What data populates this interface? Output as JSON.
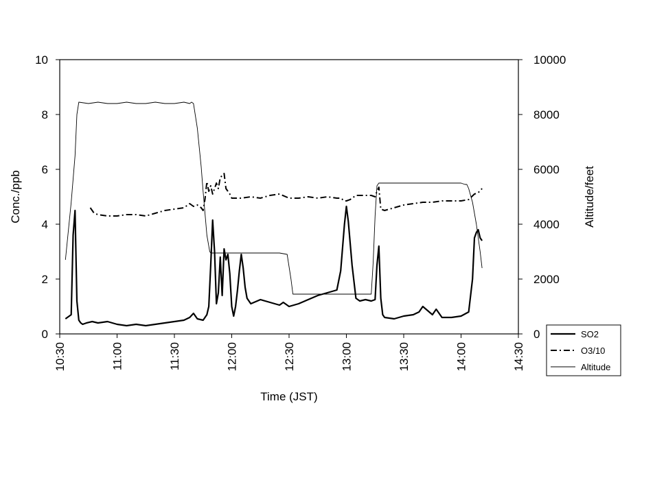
{
  "chart_data": {
    "type": "line",
    "title": "",
    "xlabel": "Time (JST)",
    "ylabel": "Conc./ppb",
    "y2label": "Altitude/feet",
    "xlim": [
      "10:30",
      "14:30"
    ],
    "ylim": [
      0,
      10
    ],
    "y2lim": [
      0,
      10000
    ],
    "x_ticks": [
      "10:30",
      "11:00",
      "11:30",
      "12:00",
      "12:30",
      "13:00",
      "13:30",
      "14:00",
      "14:30"
    ],
    "y_ticks": [
      "0",
      "2",
      "4",
      "6",
      "8",
      "10"
    ],
    "y2_ticks": [
      "0",
      "2000",
      "4000",
      "6000",
      "8000",
      "10000"
    ],
    "grid": false,
    "legend_position": "right",
    "series": [
      {
        "name": "SO2",
        "axis": "left",
        "style": "solid-thick",
        "x": [
          "10:33",
          "10:34",
          "10:35",
          "10:36",
          "10:37",
          "10:38",
          "10:39",
          "10:40",
          "10:41",
          "10:42",
          "10:44",
          "10:47",
          "10:50",
          "10:55",
          "11:00",
          "11:05",
          "11:10",
          "11:15",
          "11:20",
          "11:25",
          "11:30",
          "11:35",
          "11:38",
          "11:40",
          "11:42",
          "11:45",
          "11:47",
          "11:48",
          "11:49",
          "11:50",
          "11:51",
          "11:52",
          "11:53",
          "11:54",
          "11:55",
          "11:56",
          "11:57",
          "11:58",
          "11:59",
          "12:00",
          "12:01",
          "12:02",
          "12:03",
          "12:04",
          "12:05",
          "12:06",
          "12:07",
          "12:08",
          "12:10",
          "12:15",
          "12:20",
          "12:25",
          "12:27",
          "12:30",
          "12:35",
          "12:40",
          "12:45",
          "12:50",
          "12:55",
          "12:57",
          "12:59",
          "13:00",
          "13:01",
          "13:03",
          "13:05",
          "13:07",
          "13:10",
          "13:13",
          "13:15",
          "13:16",
          "13:17",
          "13:18",
          "13:19",
          "13:20",
          "13:25",
          "13:30",
          "13:35",
          "13:38",
          "13:40",
          "13:45",
          "13:47",
          "13:50",
          "13:55",
          "14:00",
          "14:04",
          "14:06",
          "14:07",
          "14:08",
          "14:09",
          "14:10",
          "14:11"
        ],
        "values": [
          0.55,
          0.6,
          0.65,
          0.7,
          3.6,
          4.5,
          1.2,
          0.5,
          0.4,
          0.35,
          0.4,
          0.45,
          0.4,
          0.45,
          0.35,
          0.3,
          0.35,
          0.3,
          0.35,
          0.4,
          0.45,
          0.5,
          0.6,
          0.75,
          0.55,
          0.5,
          0.7,
          1.0,
          2.5,
          4.15,
          3.0,
          1.1,
          1.5,
          2.8,
          1.4,
          3.1,
          2.7,
          2.9,
          2.2,
          1.0,
          0.65,
          1.0,
          1.6,
          2.3,
          2.9,
          2.4,
          1.7,
          1.3,
          1.1,
          1.25,
          1.15,
          1.05,
          1.15,
          1.0,
          1.1,
          1.25,
          1.4,
          1.5,
          1.6,
          2.3,
          4.0,
          4.65,
          4.1,
          2.5,
          1.3,
          1.2,
          1.25,
          1.2,
          1.25,
          2.5,
          3.2,
          1.3,
          0.7,
          0.6,
          0.55,
          0.65,
          0.7,
          0.8,
          1.0,
          0.7,
          0.9,
          0.6,
          0.6,
          0.65,
          0.8,
          2.0,
          3.5,
          3.7,
          3.8,
          3.5,
          3.4
        ]
      },
      {
        "name": "O3/10",
        "axis": "left",
        "style": "dash-dot",
        "x": [
          "10:46",
          "10:48",
          "10:50",
          "10:55",
          "11:00",
          "11:05",
          "11:10",
          "11:15",
          "11:20",
          "11:25",
          "11:30",
          "11:35",
          "11:38",
          "11:40",
          "11:42",
          "11:44",
          "11:45",
          "11:46",
          "11:47",
          "11:48",
          "11:49",
          "11:50",
          "11:51",
          "11:52",
          "11:53",
          "11:54",
          "11:56",
          "11:57",
          "11:58",
          "11:59",
          "12:00",
          "12:05",
          "12:10",
          "12:15",
          "12:20",
          "12:25",
          "12:30",
          "12:35",
          "12:40",
          "12:45",
          "12:50",
          "12:55",
          "12:57",
          "12:59",
          "13:00",
          "13:02",
          "13:05",
          "13:10",
          "13:13",
          "13:15",
          "13:16",
          "13:17",
          "13:18",
          "13:20",
          "13:25",
          "13:30",
          "13:35",
          "13:40",
          "13:45",
          "13:50",
          "13:55",
          "14:00",
          "14:04",
          "14:07",
          "14:09",
          "14:11"
        ],
        "values": [
          4.6,
          4.4,
          4.35,
          4.3,
          4.3,
          4.35,
          4.35,
          4.3,
          4.4,
          4.5,
          4.55,
          4.6,
          4.75,
          4.65,
          4.7,
          4.6,
          4.5,
          4.9,
          5.55,
          5.2,
          5.4,
          5.1,
          5.3,
          5.5,
          5.3,
          5.7,
          5.85,
          5.3,
          5.2,
          5.1,
          4.95,
          4.95,
          5.0,
          4.95,
          5.05,
          5.1,
          4.95,
          4.95,
          5.0,
          4.95,
          5.0,
          4.95,
          4.95,
          4.85,
          4.85,
          4.9,
          5.05,
          5.05,
          5.05,
          5.0,
          5.2,
          5.35,
          4.55,
          4.5,
          4.6,
          4.7,
          4.75,
          4.8,
          4.8,
          4.85,
          4.85,
          4.85,
          4.9,
          5.1,
          5.15,
          5.3
        ]
      },
      {
        "name": "Altitude",
        "axis": "right",
        "style": "solid-thin",
        "x": [
          "10:33",
          "10:36",
          "10:38",
          "10:39",
          "10:40",
          "10:45",
          "10:50",
          "10:55",
          "11:00",
          "11:05",
          "11:10",
          "11:15",
          "11:20",
          "11:25",
          "11:30",
          "11:35",
          "11:38",
          "11:39",
          "11:40",
          "11:42",
          "11:44",
          "11:45",
          "11:47",
          "11:48",
          "11:48.5",
          "11:49",
          "11:50",
          "11:55",
          "12:00",
          "12:05",
          "12:10",
          "12:15",
          "12:20",
          "12:25",
          "12:29",
          "12:31",
          "12:32",
          "12:35",
          "12:40",
          "12:45",
          "12:50",
          "12:55",
          "13:00",
          "13:05",
          "13:10",
          "13:13",
          "13:14",
          "13:15",
          "13:16",
          "13:17",
          "13:18",
          "13:20",
          "13:25",
          "13:30",
          "13:35",
          "13:40",
          "13:45",
          "13:50",
          "13:55",
          "14:00",
          "14:02",
          "14:03",
          "14:04",
          "14:06",
          "14:08",
          "14:10",
          "14:11"
        ],
        "values": [
          2700,
          4800,
          6500,
          8000,
          8450,
          8400,
          8450,
          8400,
          8400,
          8450,
          8400,
          8400,
          8450,
          8400,
          8400,
          8450,
          8400,
          8450,
          8400,
          7500,
          6100,
          5200,
          3600,
          3200,
          3000,
          2950,
          2950,
          2950,
          2950,
          2950,
          2950,
          2950,
          2950,
          2950,
          2900,
          2000,
          1450,
          1450,
          1450,
          1450,
          1450,
          1450,
          1450,
          1450,
          1450,
          1450,
          2600,
          4300,
          5400,
          5500,
          5500,
          5500,
          5500,
          5500,
          5500,
          5500,
          5500,
          5500,
          5500,
          5500,
          5450,
          5450,
          5300,
          4800,
          4000,
          3000,
          2400
        ]
      }
    ]
  }
}
